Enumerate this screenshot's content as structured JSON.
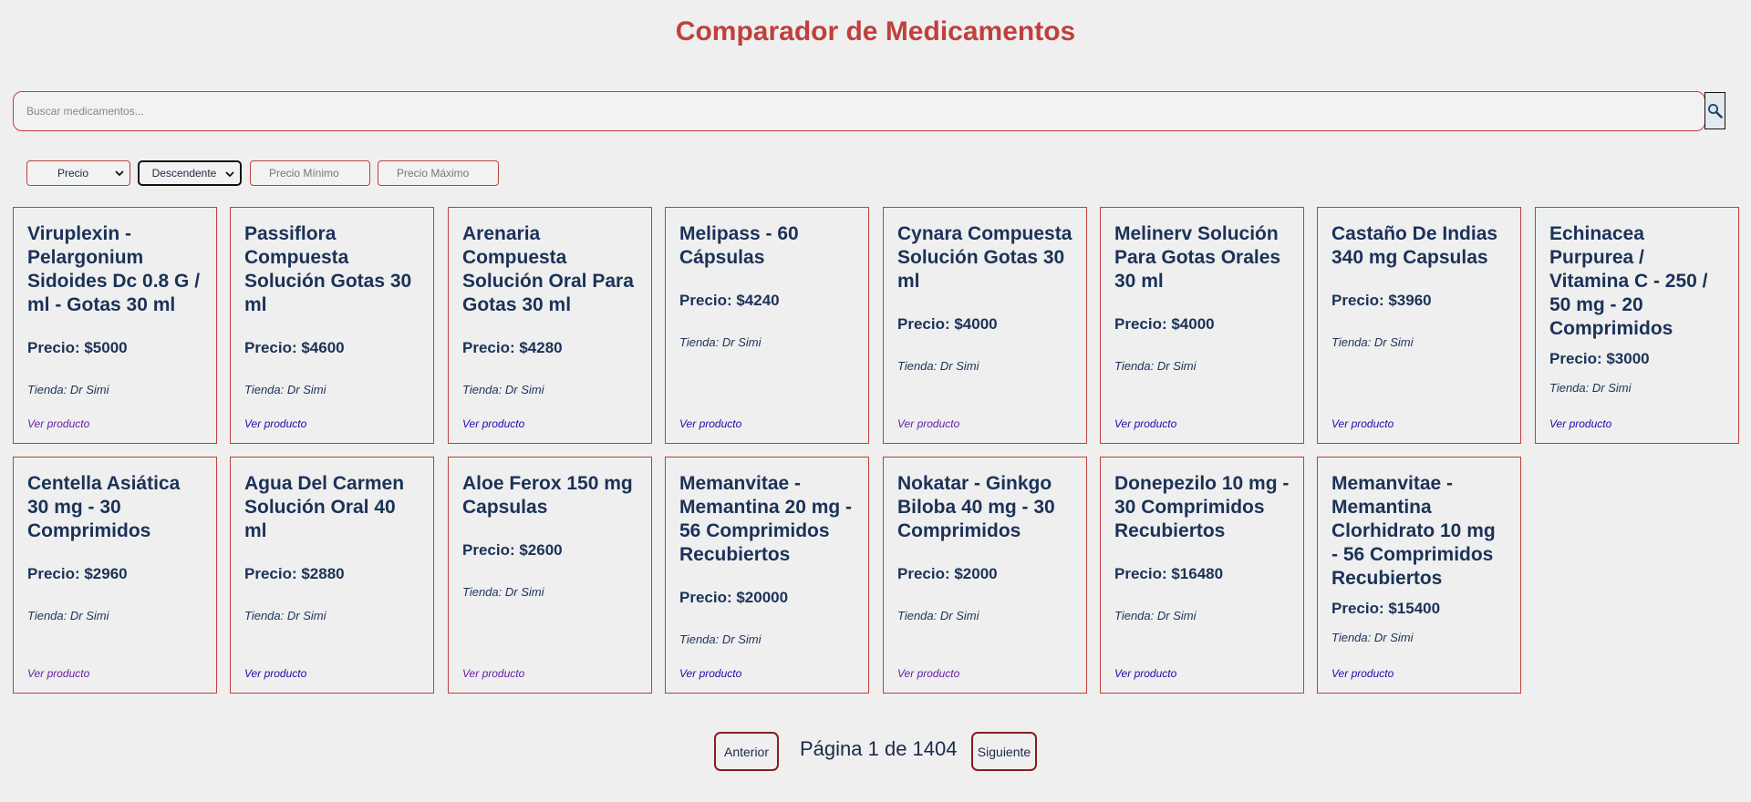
{
  "page": {
    "title": "Comparador de Medicamentos"
  },
  "search": {
    "placeholder": "Buscar medicamentos...",
    "value": ""
  },
  "filters": {
    "sort_by": "Precio",
    "order": "Descendente",
    "min_placeholder": "Precio Mínimo",
    "max_placeholder": "Precio Máximo"
  },
  "products": [
    {
      "name": "Viruplexin - Pelargonium Sidoides Dc 0.8 G / ml - Gotas 30 ml",
      "price": "Precio: $5000",
      "store": "Tienda: Dr Simi",
      "link": "Ver producto",
      "visited": true
    },
    {
      "name": "Passiflora Compuesta Solución Gotas 30 ml",
      "price": "Precio: $4600",
      "store": "Tienda: Dr Simi",
      "link": "Ver producto",
      "visited": false
    },
    {
      "name": "Arenaria Compuesta Solución Oral Para Gotas 30 ml",
      "price": "Precio: $4280",
      "store": "Tienda: Dr Simi",
      "link": "Ver producto",
      "visited": false
    },
    {
      "name": "Melipass - 60 Cápsulas",
      "price": "Precio: $4240",
      "store": "Tienda: Dr Simi",
      "link": "Ver producto",
      "visited": false
    },
    {
      "name": "Cynara Compuesta Solución Gotas 30 ml",
      "price": "Precio: $4000",
      "store": "Tienda: Dr Simi",
      "link": "Ver producto",
      "visited": true
    },
    {
      "name": "Melinerv Solución Para Gotas Orales 30 ml",
      "price": "Precio: $4000",
      "store": "Tienda: Dr Simi",
      "link": "Ver producto",
      "visited": false
    },
    {
      "name": "Castaño De Indias 340 mg Capsulas",
      "price": "Precio: $3960",
      "store": "Tienda: Dr Simi",
      "link": "Ver producto",
      "visited": false
    },
    {
      "name": "Echinacea Purpurea / Vitamina C - 250 / 50 mg - 20 Comprimidos",
      "price": "Precio: $3000",
      "store": "Tienda: Dr Simi",
      "link": "Ver producto",
      "visited": false
    },
    {
      "name": "Centella Asiática 30 mg - 30 Comprimidos",
      "price": "Precio: $2960",
      "store": "Tienda: Dr Simi",
      "link": "Ver producto",
      "visited": true
    },
    {
      "name": "Agua Del Carmen Solución Oral 40 ml",
      "price": "Precio: $2880",
      "store": "Tienda: Dr Simi",
      "link": "Ver producto",
      "visited": false
    },
    {
      "name": "Aloe Ferox 150 mg Capsulas",
      "price": "Precio: $2600",
      "store": "Tienda: Dr Simi",
      "link": "Ver producto",
      "visited": true
    },
    {
      "name": "Memanvitae - Memantina 20 mg - 56 Comprimidos Recubiertos",
      "price": "Precio: $20000",
      "store": "Tienda: Dr Simi",
      "link": "Ver producto",
      "visited": false
    },
    {
      "name": "Nokatar - Ginkgo Biloba 40 mg - 30 Comprimidos",
      "price": "Precio: $2000",
      "store": "Tienda: Dr Simi",
      "link": "Ver producto",
      "visited": true
    },
    {
      "name": "Donepezilo 10 mg - 30 Comprimidos Recubiertos",
      "price": "Precio: $16480",
      "store": "Tienda: Dr Simi",
      "link": "Ver producto",
      "visited": false
    },
    {
      "name": "Memanvitae - Memantina Clorhidrato 10 mg - 56 Comprimidos Recubiertos",
      "price": "Precio: $15400",
      "store": "Tienda: Dr Simi",
      "link": "Ver producto",
      "visited": false
    }
  ],
  "pagination": {
    "prev_label": "Anterior",
    "info": "Página 1 de 1404",
    "next_label": "Siguiente"
  },
  "colors": {
    "accent": "#c0403c",
    "text": "#1b3258",
    "background": "#efefef",
    "link": "#1a0dab",
    "link_visited": "#681da8"
  },
  "icons": {
    "search_button": "magnifier-icon",
    "select_arrow": "chevron-down-icon"
  }
}
